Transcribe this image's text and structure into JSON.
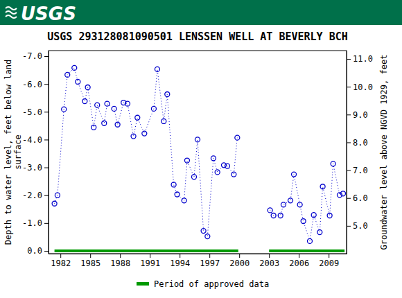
{
  "logo_text": "USGS",
  "chart_data": {
    "type": "line",
    "title": "USGS 293128081090501 LENSSEN WELL AT BEVERLY BCH",
    "ylabel": [
      "Depth to water level, feet below land",
      "surface"
    ],
    "y2label": "Groundwater level above NGVD 1929, feet",
    "x": [
      1981.4,
      1981.7,
      1982.35,
      1982.7,
      1983.4,
      1983.75,
      1984.45,
      1984.75,
      1985.35,
      1985.7,
      1986.4,
      1986.7,
      1987.4,
      1987.75,
      1988.35,
      1988.75,
      1989.35,
      1989.75,
      1990.45,
      1991.4,
      1991.75,
      1992.4,
      1992.75,
      1993.4,
      1993.75,
      1994.45,
      1994.75,
      1995.45,
      1995.8,
      1996.4,
      1996.8,
      1997.4,
      1997.8,
      1998.45,
      1998.8,
      1999.45,
      1999.8,
      2001.5,
      2003.1,
      2003.45,
      2004.15,
      2004.45,
      2005.15,
      2005.5,
      2006.1,
      2006.45,
      2007.1,
      2007.5,
      2008.1,
      2008.4,
      2009.1,
      2009.45,
      2010.1,
      2010.45
    ],
    "series": [
      {
        "color": "#0000cc",
        "marker": "circle",
        "line_style": "dotted",
        "values": [
          -1.7,
          -2.0,
          -5.09,
          -6.33,
          -6.58,
          -6.08,
          -5.38,
          -5.88,
          -4.44,
          -5.24,
          -4.59,
          -5.29,
          -5.11,
          -4.54,
          -5.33,
          -5.29,
          -4.12,
          -4.79,
          -4.22,
          -5.11,
          -6.53,
          -4.66,
          -5.63,
          -2.38,
          -2.03,
          -1.81,
          -3.25,
          -2.66,
          -4.0,
          -0.72,
          -0.52,
          -3.33,
          -2.83,
          -3.08,
          -3.05,
          -2.75,
          -4.07,
          null,
          -1.46,
          -1.27,
          -1.27,
          -1.66,
          -1.81,
          -2.75,
          -1.66,
          -1.07,
          -0.35,
          -1.29,
          -0.67,
          -2.31,
          -1.27,
          -3.13,
          -2.01,
          -2.06
        ]
      }
    ],
    "xlim": [
      1980.8,
      2010.8
    ],
    "xticks": [
      1982,
      1985,
      1988,
      1991,
      1994,
      1997,
      2000,
      2003,
      2006,
      2009
    ],
    "ylim": [
      0.1,
      -7.2
    ],
    "yticks": [
      {
        "value": -7,
        "label": "-7.0"
      },
      {
        "value": -6,
        "label": "-6.0"
      },
      {
        "value": -5,
        "label": "-5.0"
      },
      {
        "value": -4,
        "label": "-4.0"
      },
      {
        "value": -3,
        "label": "-3.0"
      },
      {
        "value": -2,
        "label": "-2.0"
      },
      {
        "value": -1,
        "label": "-1.0"
      },
      {
        "value": 0,
        "label": "0.0"
      }
    ],
    "y2lim": [
      4.0,
      11.3
    ],
    "y2ticks": [
      {
        "value": 5,
        "label": "5.0"
      },
      {
        "value": 6,
        "label": "6.0"
      },
      {
        "value": 7,
        "label": "7.0"
      },
      {
        "value": 8,
        "label": "8.0"
      },
      {
        "value": 9,
        "label": "9.0"
      },
      {
        "value": 10,
        "label": "10.0"
      },
      {
        "value": 11,
        "label": "11.0"
      }
    ],
    "approved_periods": {
      "name": "Period of approved data",
      "color": "#009900",
      "ranges": [
        [
          1981.4,
          1999.9
        ],
        [
          2003.0,
          2010.6
        ]
      ]
    },
    "grid": false
  }
}
